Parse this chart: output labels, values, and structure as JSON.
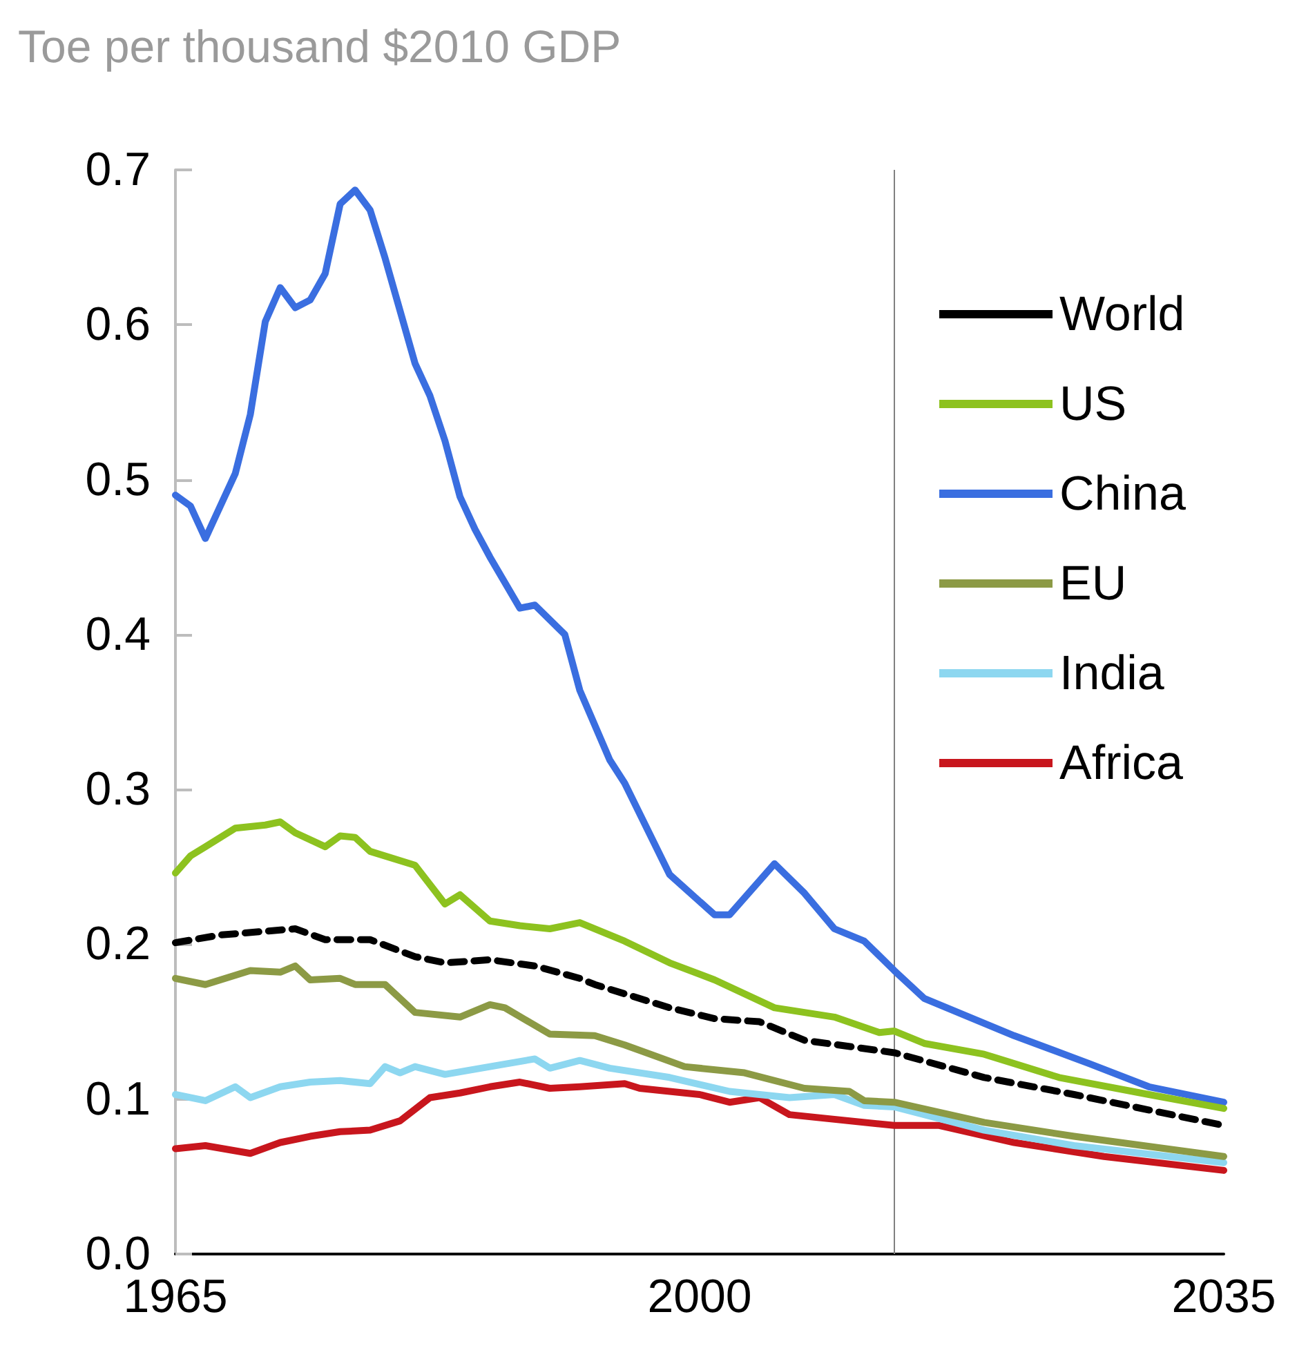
{
  "chart_data": {
    "type": "line",
    "title": "Toe per thousand $2010 GDP",
    "xlim": [
      1965,
      2035
    ],
    "xticks": [
      1965,
      2000,
      2035
    ],
    "ylim": [
      0,
      0.7
    ],
    "yticks": [
      {
        "value": 0,
        "label": "0.0"
      },
      0.1,
      0.2,
      0.3,
      0.4,
      0.5,
      0.6,
      0.7
    ],
    "grid": false,
    "legend": "right",
    "marker": "none",
    "ref_lines": [
      {
        "axis": "x",
        "value": 2013,
        "label": null,
        "color": "#808080"
      }
    ],
    "series": [
      {
        "name": "World",
        "color": "#000000",
        "line_style": "dashed",
        "x": [
          1965,
          1968,
          1973,
          1975,
          1978,
          1981,
          1983,
          1986,
          1989,
          1992,
          1993,
          1998,
          2001,
          2004,
          2007,
          2013,
          2019,
          2025,
          2035
        ],
        "values": [
          0.201,
          0.206,
          0.21,
          0.203,
          0.203,
          0.192,
          0.188,
          0.19,
          0.186,
          0.178,
          0.174,
          0.159,
          0.152,
          0.15,
          0.138,
          0.13,
          0.114,
          0.103,
          0.083
        ]
      },
      {
        "name": "US",
        "color": "#8dc21f",
        "line_style": "solid",
        "x": [
          1965,
          1966,
          1967,
          1969,
          1971,
          1972,
          1973,
          1975,
          1976,
          1977,
          1978,
          1981,
          1983,
          1984,
          1986,
          1988,
          1990,
          1992,
          1995,
          1998,
          2001,
          2005,
          2009,
          2012,
          2013,
          2015,
          2019,
          2024,
          2030,
          2035
        ],
        "values": [
          0.246,
          0.257,
          0.263,
          0.275,
          0.277,
          0.279,
          0.272,
          0.263,
          0.27,
          0.269,
          0.26,
          0.251,
          0.226,
          0.232,
          0.215,
          0.212,
          0.21,
          0.214,
          0.202,
          0.188,
          0.177,
          0.159,
          0.153,
          0.143,
          0.144,
          0.136,
          0.129,
          0.114,
          0.103,
          0.094
        ]
      },
      {
        "name": "China",
        "color": "#3a6ee0",
        "line_style": "solid",
        "x": [
          1965,
          1966,
          1967,
          1969,
          1970,
          1971,
          1972,
          1973,
          1974,
          1975,
          1976,
          1977,
          1978,
          1979,
          1981,
          1982,
          1983,
          1984,
          1985,
          1986,
          1988,
          1989,
          1991,
          1992,
          1994,
          1995,
          1998,
          2001,
          2002,
          2005,
          2007,
          2009,
          2011,
          2013,
          2015,
          2021,
          2026,
          2030,
          2035
        ],
        "values": [
          0.49,
          0.483,
          0.462,
          0.504,
          0.542,
          0.602,
          0.624,
          0.611,
          0.616,
          0.633,
          0.678,
          0.687,
          0.674,
          0.643,
          0.575,
          0.554,
          0.525,
          0.489,
          0.468,
          0.45,
          0.417,
          0.419,
          0.4,
          0.364,
          0.319,
          0.304,
          0.245,
          0.219,
          0.219,
          0.252,
          0.233,
          0.21,
          0.202,
          0.183,
          0.165,
          0.141,
          0.123,
          0.108,
          0.098
        ]
      },
      {
        "name": "EU",
        "color": "#8c9a45",
        "line_style": "solid",
        "x": [
          1965,
          1967,
          1970,
          1972,
          1973,
          1974,
          1976,
          1977,
          1979,
          1981,
          1984,
          1986,
          1987,
          1990,
          1993,
          1995,
          1999,
          2003,
          2007,
          2010,
          2011,
          2013,
          2019,
          2025,
          2035
        ],
        "values": [
          0.178,
          0.174,
          0.183,
          0.182,
          0.186,
          0.177,
          0.178,
          0.174,
          0.174,
          0.156,
          0.153,
          0.161,
          0.159,
          0.142,
          0.141,
          0.135,
          0.121,
          0.117,
          0.107,
          0.105,
          0.099,
          0.098,
          0.085,
          0.076,
          0.063
        ]
      },
      {
        "name": "India",
        "color": "#8dd7f0",
        "line_style": "solid",
        "x": [
          1965,
          1967,
          1969,
          1970,
          1972,
          1974,
          1976,
          1978,
          1979,
          1980,
          1981,
          1983,
          1986,
          1989,
          1990,
          1992,
          1994,
          1998,
          2002,
          2006,
          2009,
          2011,
          2013,
          2019,
          2025,
          2035
        ],
        "values": [
          0.103,
          0.099,
          0.108,
          0.101,
          0.108,
          0.111,
          0.112,
          0.11,
          0.121,
          0.117,
          0.121,
          0.116,
          0.121,
          0.126,
          0.12,
          0.125,
          0.12,
          0.114,
          0.105,
          0.101,
          0.103,
          0.096,
          0.095,
          0.08,
          0.07,
          0.059
        ]
      },
      {
        "name": "Africa",
        "color": "#c8161d",
        "line_style": "solid",
        "x": [
          1965,
          1967,
          1970,
          1972,
          1974,
          1976,
          1978,
          1980,
          1982,
          1984,
          1986,
          1988,
          1990,
          1992,
          1995,
          1996,
          2000,
          2002,
          2004,
          2006,
          2009,
          2013,
          2016,
          2021,
          2027,
          2035
        ],
        "values": [
          0.068,
          0.07,
          0.065,
          0.072,
          0.076,
          0.079,
          0.08,
          0.086,
          0.101,
          0.104,
          0.108,
          0.111,
          0.107,
          0.108,
          0.11,
          0.107,
          0.103,
          0.098,
          0.101,
          0.09,
          0.087,
          0.083,
          0.083,
          0.072,
          0.063,
          0.054
        ]
      }
    ]
  }
}
